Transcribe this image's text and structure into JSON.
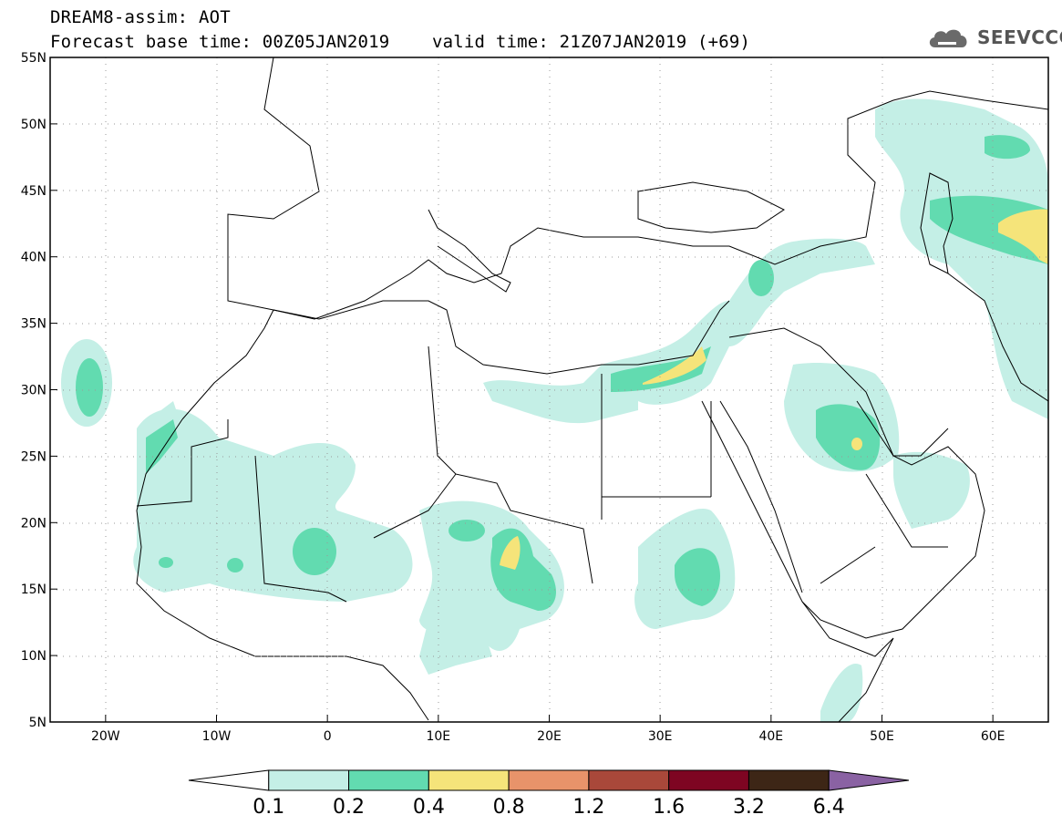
{
  "title": {
    "line1": "DREAM8-assim: AOT",
    "line2": "Forecast base time: 00Z05JAN2019    valid time: 21Z07JAN2019 (+69)"
  },
  "logo": {
    "text": "SEEVCCC",
    "icon": "cloud-icon"
  },
  "map": {
    "lon_range": [
      -25,
      65
    ],
    "lat_range": [
      5,
      55
    ],
    "lat_ticks": [
      "5N",
      "10N",
      "15N",
      "20N",
      "25N",
      "30N",
      "35N",
      "40N",
      "45N",
      "50N",
      "55N"
    ],
    "lon_ticks": [
      "20W",
      "10W",
      "0",
      "10E",
      "20E",
      "30E",
      "40E",
      "50E",
      "60E"
    ]
  },
  "colorbar": {
    "labels": [
      "0.1",
      "0.2",
      "0.4",
      "0.8",
      "1.2",
      "1.6",
      "3.2",
      "6.4"
    ],
    "colors": [
      "#ffffff",
      "#c4efe6",
      "#62dbb0",
      "#f5e47a",
      "#e8936a",
      "#a9483a",
      "#7e0522",
      "#3d2616",
      "#8a62a3"
    ]
  },
  "colors": {
    "c1": "#c4efe6",
    "c2": "#62dbb0",
    "c3": "#f5e47a"
  }
}
